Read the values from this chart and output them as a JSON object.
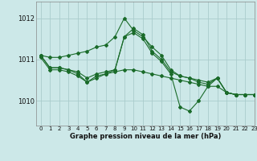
{
  "title": "Graphe pression niveau de la mer (hPa)",
  "background_color": "#cce8e8",
  "grid_color": "#aacccc",
  "line_color": "#1a6b2a",
  "ylim": [
    1009.4,
    1012.4
  ],
  "yticks": [
    1010,
    1011,
    1012
  ],
  "xlim": [
    -0.5,
    23
  ],
  "xticks": [
    0,
    1,
    2,
    3,
    4,
    5,
    6,
    7,
    8,
    9,
    10,
    11,
    12,
    13,
    14,
    15,
    16,
    17,
    18,
    19,
    20,
    21,
    22,
    23
  ],
  "series": [
    {
      "data": [
        1011.1,
        1011.05,
        1011.05,
        1011.1,
        1011.15,
        1011.2,
        1011.3,
        1011.35,
        1011.55,
        1012.0,
        1011.7,
        1011.55,
        1011.3,
        1011.1,
        1010.75,
        1010.6,
        1010.55,
        1010.5,
        1010.45,
        1010.55,
        1010.2,
        1010.15,
        1010.15,
        1010.15
      ]
    },
    {
      "data": [
        1011.1,
        1010.8,
        1010.8,
        1010.75,
        1010.7,
        1010.55,
        1010.65,
        1010.7,
        1010.75,
        1011.55,
        1011.75,
        1011.6,
        1011.2,
        1011.0,
        1010.7,
        1010.6,
        1010.55,
        1010.45,
        1010.4,
        1010.55,
        1010.2,
        1010.15,
        1010.15,
        1010.15
      ]
    },
    {
      "data": [
        1011.05,
        1010.75,
        1010.75,
        1010.7,
        1010.6,
        1010.45,
        1010.6,
        1010.65,
        1010.7,
        1010.75,
        1010.75,
        1010.7,
        1010.65,
        1010.6,
        1010.55,
        1010.5,
        1010.45,
        1010.4,
        1010.35,
        1010.35,
        1010.2,
        1010.15,
        1010.15,
        1010.15
      ]
    },
    {
      "data": [
        1011.1,
        1010.8,
        1010.8,
        1010.75,
        1010.65,
        1010.45,
        1010.55,
        1010.65,
        1010.75,
        1011.55,
        1011.65,
        1011.5,
        1011.15,
        1010.95,
        1010.65,
        1009.85,
        1009.75,
        1010.0,
        1010.35,
        1010.55,
        1010.2,
        1010.15,
        1010.15,
        1010.15
      ]
    }
  ]
}
